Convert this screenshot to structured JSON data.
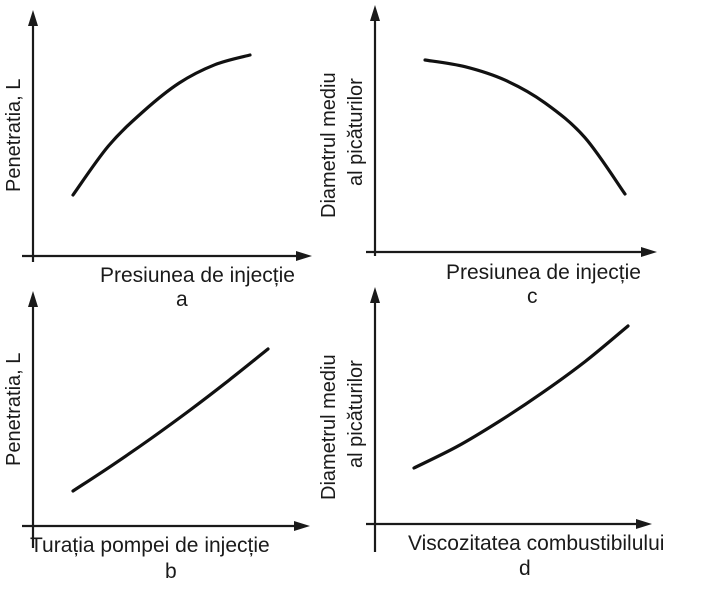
{
  "chart_data": [
    {
      "id": "a",
      "type": "line",
      "panel_label": "a",
      "xlabel": "Presiunea de injecție",
      "ylabel": [
        "Penetratia, L"
      ],
      "series": [
        {
          "x": [
            0,
            0.2,
            0.4,
            0.6,
            0.8,
            1.0
          ],
          "y": [
            0,
            0.35,
            0.6,
            0.8,
            0.93,
            1.0
          ]
        }
      ]
    },
    {
      "id": "c",
      "type": "line",
      "panel_label": "c",
      "xlabel": "Presiunea de injecție",
      "ylabel": [
        "Diametrul mediu",
        "al picăturilor"
      ],
      "series": [
        {
          "x": [
            0,
            0.2,
            0.4,
            0.6,
            0.8,
            1.0
          ],
          "y": [
            1.0,
            0.95,
            0.85,
            0.68,
            0.42,
            0.0
          ]
        }
      ]
    },
    {
      "id": "b",
      "type": "line",
      "panel_label": "b",
      "xlabel": "Turația  pompei de injecție",
      "ylabel": [
        "Penetratia, L"
      ],
      "series": [
        {
          "x": [
            0,
            0.2,
            0.4,
            0.6,
            0.8,
            1.0
          ],
          "y": [
            0,
            0.18,
            0.37,
            0.57,
            0.78,
            1.0
          ]
        }
      ]
    },
    {
      "id": "d",
      "type": "line",
      "panel_label": "d",
      "xlabel": "Viscozitatea combustibilului",
      "ylabel": [
        "Diametrul mediu",
        "al picăturilor"
      ],
      "series": [
        {
          "x": [
            0,
            0.2,
            0.4,
            0.6,
            0.8,
            1.0
          ],
          "y": [
            0,
            0.15,
            0.33,
            0.53,
            0.75,
            1.0
          ]
        }
      ]
    }
  ]
}
